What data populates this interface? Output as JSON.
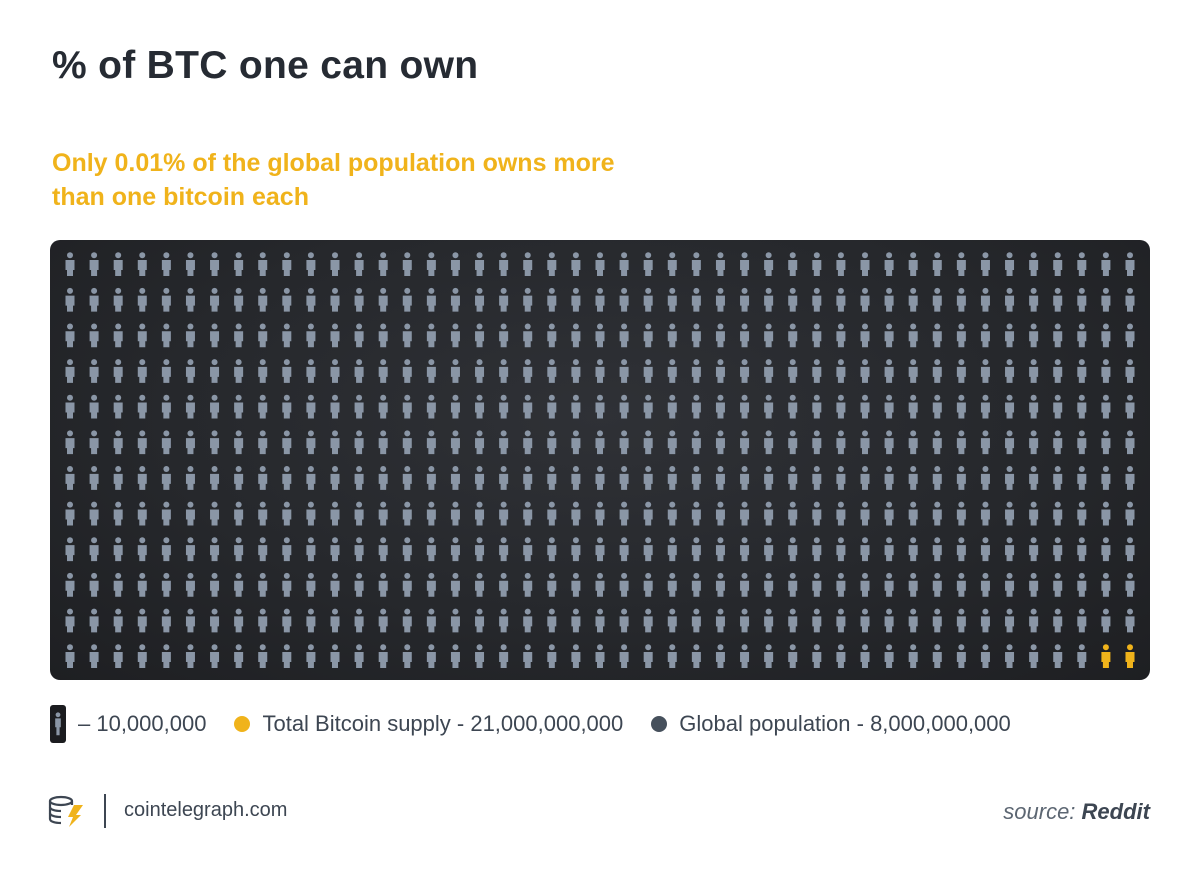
{
  "title": "% of BTC one can own",
  "subtitle": "Only 0.01% of the global population owns more than one bitcoin each",
  "legend": {
    "unit_label": "– 10,000,000",
    "btc_label": "Total Bitcoin supply - 21,000,000,000",
    "pop_label": "Global population - 8,000,000,000",
    "btc_color": "#f0b31b",
    "pop_color": "#46505c"
  },
  "footer": {
    "site": "cointelegraph.com",
    "source_prefix": "source:",
    "source_name": "Reddit"
  },
  "colors": {
    "person_gray": "#8a96a6",
    "highlight": "#f0b31b",
    "panel_bg": "#26282c"
  },
  "chart_data": {
    "type": "pictogram",
    "rows": 12,
    "columns": 45,
    "highlighted_count": 2,
    "highlight_position": "bottom-right",
    "unit_value": 10000000,
    "icon": "person-icon"
  }
}
